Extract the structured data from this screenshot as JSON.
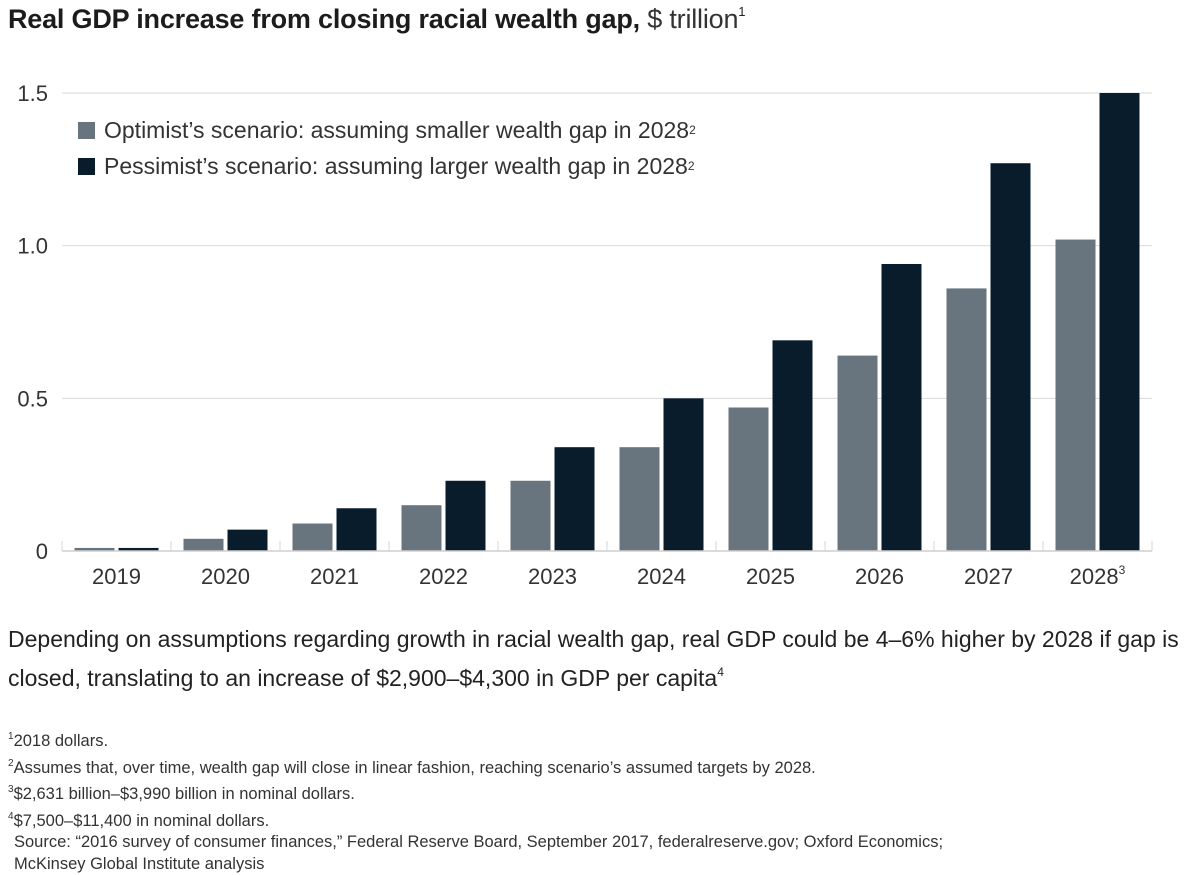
{
  "title": {
    "bold": "Real GDP increase from closing racial wealth gap,",
    "unit": " $ trillion",
    "footnote_ref": "1"
  },
  "legend": [
    {
      "label": "Optimist’s scenario: assuming smaller wealth gap in 2028",
      "footnote_ref": "2",
      "color": "#69757e"
    },
    {
      "label": "Pessimist’s scenario: assuming larger wealth gap in 2028",
      "footnote_ref": "2",
      "color": "#081c2c"
    }
  ],
  "chart_data": {
    "type": "bar",
    "title": "Real GDP increase from closing racial wealth gap, $ trillion",
    "xlabel": "",
    "ylabel": "$ trillion",
    "ylim": [
      0,
      1.5
    ],
    "yticks": [
      0,
      0.5,
      1.0,
      1.5
    ],
    "ytick_labels": [
      "0",
      "0.5",
      "1.0",
      "1.5"
    ],
    "grid": true,
    "legend_position": "top-left",
    "categories": [
      "2019",
      "2020",
      "2021",
      "2022",
      "2023",
      "2024",
      "2025",
      "2026",
      "2027",
      "2028"
    ],
    "category_footnotes": {
      "2028": "3"
    },
    "series": [
      {
        "name": "Optimist’s scenario: assuming smaller wealth gap in 2028",
        "color": "#69757e",
        "values": [
          0.01,
          0.04,
          0.09,
          0.15,
          0.23,
          0.34,
          0.47,
          0.64,
          0.86,
          1.02
        ]
      },
      {
        "name": "Pessimist’s scenario: assuming larger wealth gap in 2028",
        "color": "#081c2c",
        "values": [
          0.01,
          0.07,
          0.14,
          0.23,
          0.34,
          0.5,
          0.69,
          0.94,
          1.27,
          1.5
        ]
      }
    ]
  },
  "summary": {
    "text": "Depending on assumptions regarding growth in racial wealth gap, real GDP could be 4–6% higher by 2028 if gap is closed, translating to an increase of $2,900–$4,300 in GDP per capita",
    "footnote_ref": "4"
  },
  "notes": [
    {
      "ref": "1",
      "text": "2018 dollars."
    },
    {
      "ref": "2",
      "text": "Assumes that, over time, wealth gap will close in linear fashion, reaching scenario’s assumed targets by 2028."
    },
    {
      "ref": "3",
      "text": "$2,631 billion–$3,990 billion in nominal dollars."
    },
    {
      "ref": "4",
      "text": "$7,500–$11,400 in nominal dollars."
    }
  ],
  "source": {
    "line1": "Source: “2016 survey of consumer finances,” Federal Reserve Board, September 2017, federalreserve.gov; Oxford Economics;",
    "line2": "McKinsey Global Institute analysis"
  }
}
